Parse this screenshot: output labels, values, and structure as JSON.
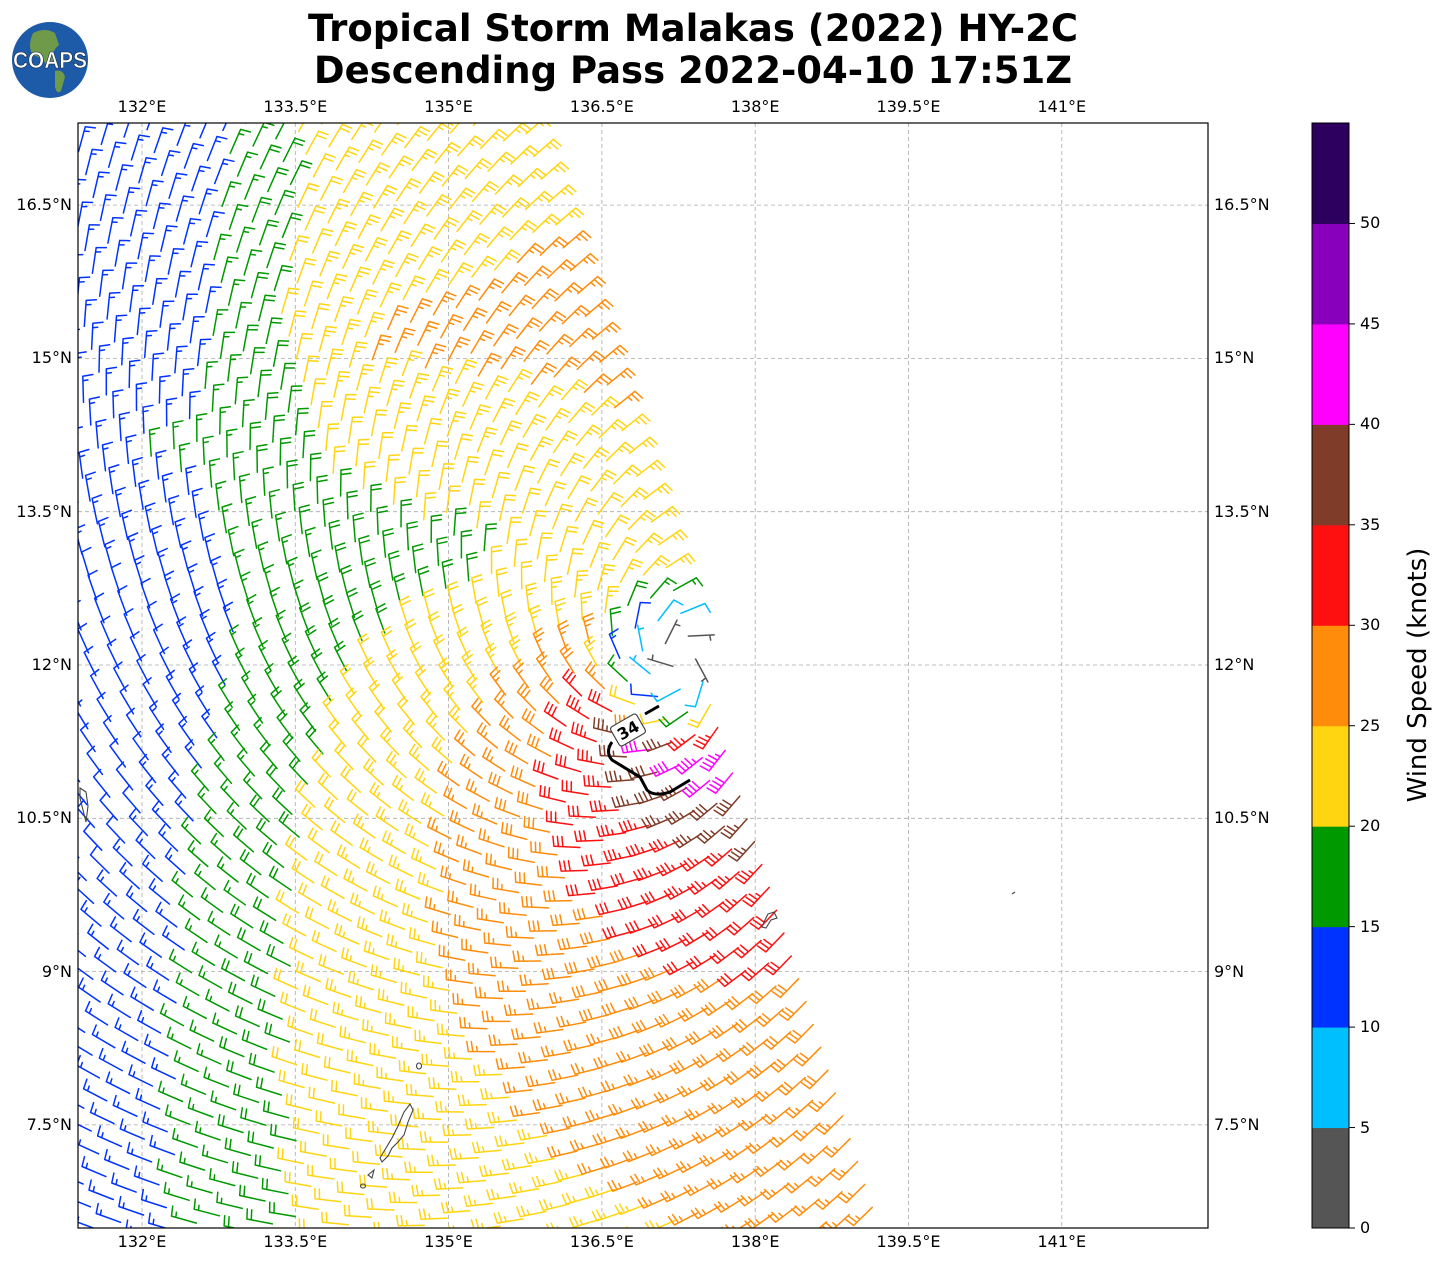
{
  "title": {
    "line1": "Tropical Storm Malakas (2022) HY-2C",
    "line2": "Descending Pass 2022-04-10 17:51Z"
  },
  "logo": {
    "text": "COAPS"
  },
  "chart_data": {
    "type": "wind_barbs",
    "title": "Tropical Storm Malakas (2022) HY-2C — Descending Pass 2022-04-10 17:51Z",
    "extent": {
      "lon": [
        131.37,
        142.43
      ],
      "lat": [
        6.49,
        17.3
      ]
    },
    "grid": true,
    "lon_ticks": [
      {
        "value": 132,
        "label": "132°E"
      },
      {
        "value": 133.5,
        "label": "133.5°E"
      },
      {
        "value": 135,
        "label": "135°E"
      },
      {
        "value": 136.5,
        "label": "136.5°E"
      },
      {
        "value": 138,
        "label": "138°E"
      },
      {
        "value": 139.5,
        "label": "139.5°E"
      },
      {
        "value": 141,
        "label": "141°E"
      }
    ],
    "lat_ticks": [
      {
        "value": 16.5,
        "label": "16.5°N"
      },
      {
        "value": 15,
        "label": "15°N"
      },
      {
        "value": 13.5,
        "label": "13.5°N"
      },
      {
        "value": 12,
        "label": "12°N"
      },
      {
        "value": 10.5,
        "label": "10.5°N"
      },
      {
        "value": 9,
        "label": "9°N"
      },
      {
        "value": 7.5,
        "label": "7.5°N"
      }
    ],
    "contour": {
      "level_kt": 34,
      "label": "34"
    },
    "colorbar": {
      "label": "Wind Speed (knots)",
      "levels": [
        0,
        5,
        10,
        15,
        20,
        25,
        30,
        35,
        40,
        45,
        50,
        55
      ],
      "tick_labels": [
        "0",
        "5",
        "10",
        "15",
        "20",
        "25",
        "30",
        "35",
        "40",
        "45",
        "50"
      ],
      "colors": [
        "#555555",
        "#00bfff",
        "#0033ff",
        "#009900",
        "#ffd511",
        "#ff8c0a",
        "#ff1010",
        "#7f3c28",
        "#ff00ff",
        "#8800bb",
        "#2d0060"
      ]
    }
  }
}
